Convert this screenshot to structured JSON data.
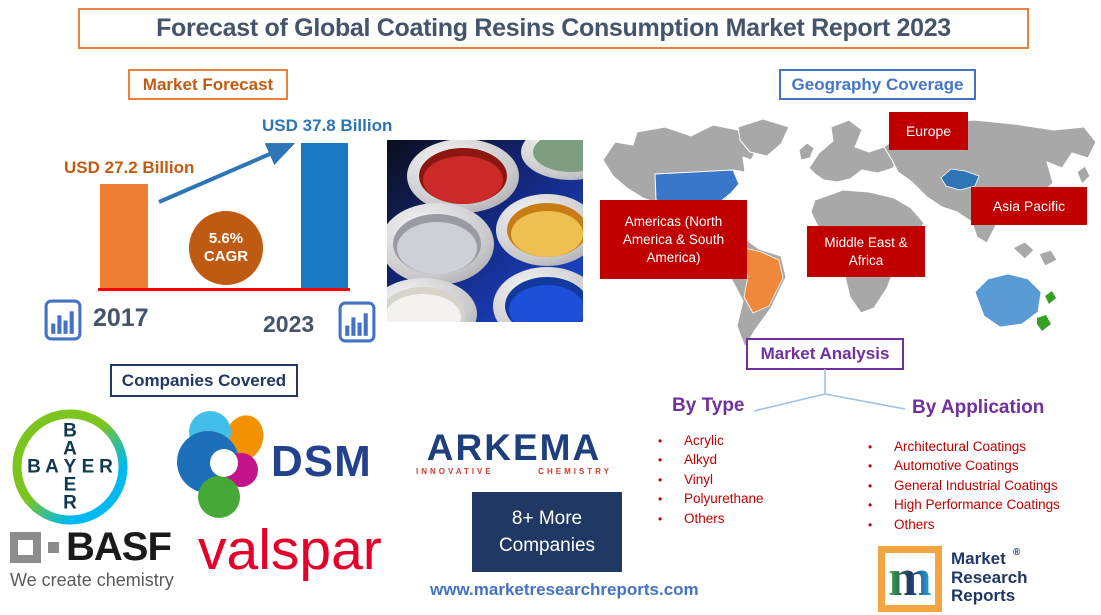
{
  "title": "Forecast of Global Coating Resins Consumption Market Report 2023",
  "market_forecast": {
    "label": "Market Forecast",
    "value_label_start": "USD 27.2 Billion",
    "value_label_end": "USD 37.8 Billion",
    "cagr_value": "5.6%",
    "cagr_label": "CAGR",
    "year_start": "2017",
    "year_end": "2023"
  },
  "chart_data": {
    "type": "bar",
    "title": "Market Forecast",
    "categories": [
      "2017",
      "2023"
    ],
    "values": [
      27.2,
      37.8
    ],
    "unit": "USD Billion",
    "annotations": [
      "USD 27.2 Billion",
      "USD 37.8 Billion",
      "5.6% CAGR"
    ],
    "bar_colors": [
      "#ed7d31",
      "#1b79c3"
    ],
    "ylim": [
      0,
      40
    ],
    "grid": false,
    "legend": false
  },
  "geography": {
    "label": "Geography Coverage",
    "regions": {
      "americas": "Americas (North America & South America)",
      "europe": "Europe",
      "middle_east_africa": "Middle East & Africa",
      "asia_pacific": "Asia Pacific"
    }
  },
  "market_analysis": {
    "label": "Market Analysis",
    "by_type": {
      "heading": "By Type",
      "items": [
        "Acrylic",
        "Alkyd",
        "Vinyl",
        "Polyurethane",
        "Others"
      ]
    },
    "by_application": {
      "heading": "By Application",
      "items": [
        "Architectural Coatings",
        "Automotive Coatings",
        "General Industrial Coatings",
        "High Performance Coatings",
        "Others"
      ]
    }
  },
  "companies": {
    "label": "Companies Covered",
    "bayer": "BAYER",
    "dsm": "DSM",
    "arkema": "ARKEMA",
    "arkema_tagline_left": "INNOVATIVE",
    "arkema_tagline_right": "CHEMISTRY",
    "basf": "BASF",
    "basf_tagline": "We create chemistry",
    "valspar": "valspar",
    "more_line1": "8+ More",
    "more_line2": "Companies"
  },
  "footer": {
    "website": "www.marketresearchreports.com",
    "logo_letter": "m",
    "logo_reg": "®",
    "logo_line1": "Market",
    "logo_line2": "Research",
    "logo_line3": "Reports"
  },
  "colors": {
    "accent_orange": "#e8803f",
    "bar_orange": "#ed7d31",
    "bar_blue": "#1b79c3",
    "cagr_circle": "#bf5a12",
    "region_red": "#c00000",
    "purple": "#7030a0",
    "navy": "#1f3864",
    "title_text": "#44546a",
    "link_blue": "#4472c4",
    "map_gray": "#a8a8a8"
  }
}
